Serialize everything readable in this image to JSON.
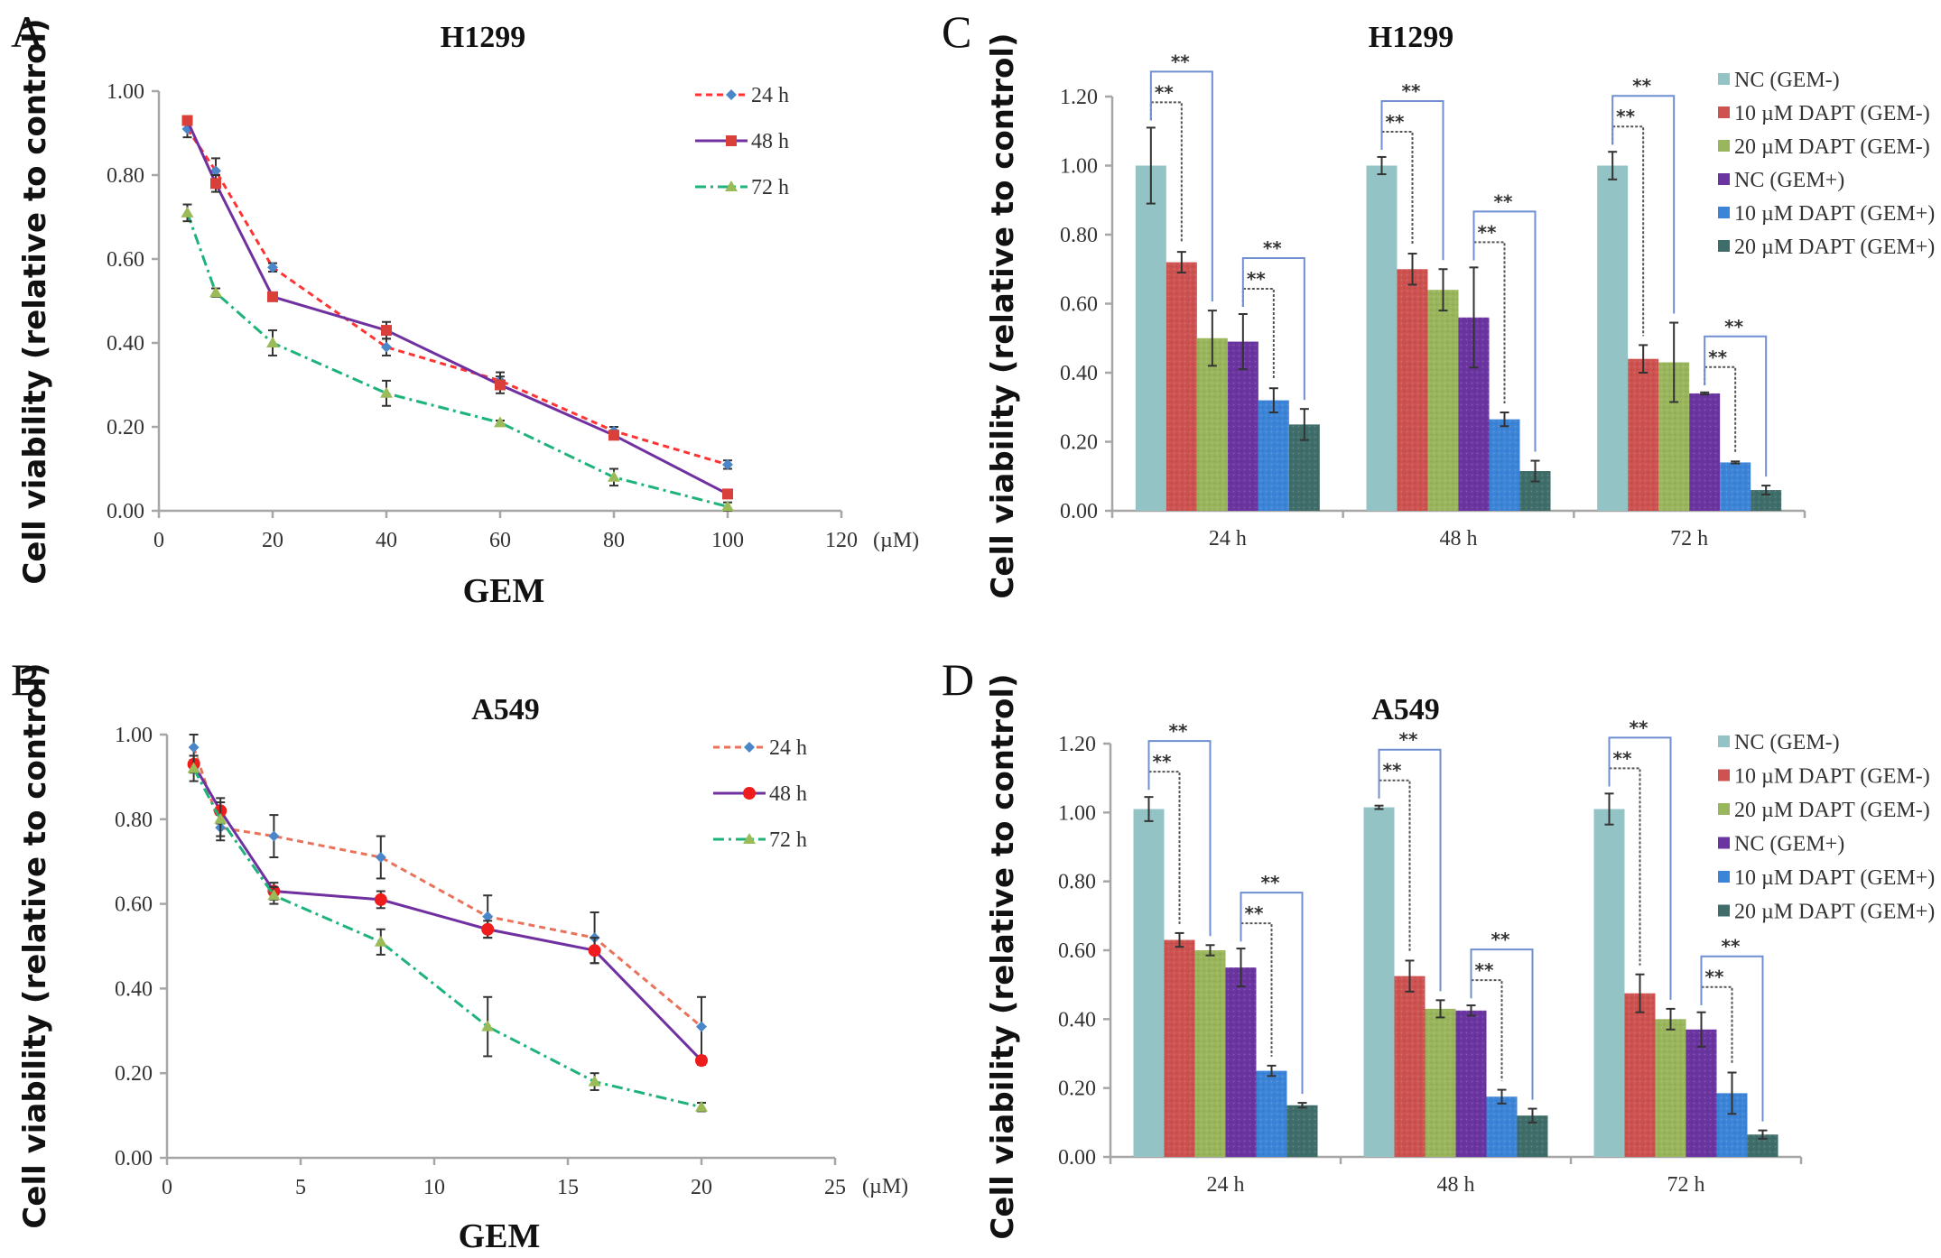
{
  "figure": {
    "panels": [
      "A",
      "B",
      "C",
      "D"
    ]
  },
  "chart_data": [
    {
      "panel": "A",
      "type": "line",
      "title": "H1299",
      "xlabel": "GEM",
      "x_unit": "(µM)",
      "ylabel": "Cell viability (relative to control)",
      "xlim": [
        0,
        120
      ],
      "ylim": [
        0,
        1.0
      ],
      "xticks": [
        0,
        20,
        40,
        60,
        80,
        100,
        120
      ],
      "xtick_labels": [
        "0",
        "20",
        "40",
        "60",
        "80",
        "100",
        "120"
      ],
      "yticks": [
        0,
        0.2,
        0.4,
        0.6,
        0.8,
        1.0
      ],
      "ytick_labels": [
        "0.00",
        "0.20",
        "0.40",
        "0.60",
        "0.80",
        "1.00"
      ],
      "legend_position": "top-right",
      "x": [
        5,
        10,
        20,
        40,
        60,
        80,
        100
      ],
      "series": [
        {
          "name": "24 h",
          "line_color": "#ff3333",
          "marker_color": "#4a86c8",
          "marker": "diamond",
          "dash": "dashed",
          "values": [
            0.91,
            0.81,
            0.58,
            0.39,
            0.31,
            0.19,
            0.11
          ],
          "errors": [
            0.02,
            0.03,
            0.01,
            0.02,
            0.02,
            0.01,
            0.01
          ]
        },
        {
          "name": "48 h",
          "line_color": "#7030a0",
          "marker_color": "#d9403a",
          "marker": "square",
          "dash": "solid",
          "values": [
            0.93,
            0.78,
            0.51,
            0.43,
            0.3,
            0.18,
            0.04
          ],
          "errors": [
            0.01,
            0.02,
            0.01,
            0.02,
            0.02,
            0.01,
            0.01
          ]
        },
        {
          "name": "72 h",
          "line_color": "#1db37a",
          "marker_color": "#9bbb59",
          "marker": "triangle",
          "dash": "dashdot",
          "values": [
            0.71,
            0.52,
            0.4,
            0.28,
            0.21,
            0.08,
            0.01
          ],
          "errors": [
            0.02,
            0.01,
            0.03,
            0.03,
            0.005,
            0.02,
            0.01
          ]
        }
      ]
    },
    {
      "panel": "B",
      "type": "line",
      "title": "A549",
      "xlabel": "GEM",
      "x_unit": "(µM)",
      "ylabel": "Cell viability (relative to control)",
      "xlim": [
        0,
        25
      ],
      "ylim": [
        0,
        1.0
      ],
      "xticks": [
        0,
        5,
        10,
        15,
        20,
        25
      ],
      "xtick_labels": [
        "0",
        "5",
        "10",
        "15",
        "20",
        "25"
      ],
      "yticks": [
        0,
        0.2,
        0.4,
        0.6,
        0.8,
        1.0
      ],
      "ytick_labels": [
        "0.00",
        "0.20",
        "0.40",
        "0.60",
        "0.80",
        "1.00"
      ],
      "legend_position": "top-right",
      "x": [
        1,
        2,
        4,
        8,
        12,
        16,
        20
      ],
      "series": [
        {
          "name": "24 h",
          "line_color": "#e8735a",
          "marker_color": "#4a86c8",
          "marker": "diamond",
          "dash": "dashed",
          "values": [
            0.97,
            0.78,
            0.76,
            0.71,
            0.57,
            0.52,
            0.31
          ],
          "errors": [
            0.03,
            0.03,
            0.05,
            0.05,
            0.05,
            0.06,
            0.07
          ]
        },
        {
          "name": "48 h",
          "line_color": "#7030a0",
          "marker_color": "#ee1c1c",
          "marker": "circle",
          "dash": "solid",
          "values": [
            0.93,
            0.82,
            0.63,
            0.61,
            0.54,
            0.49,
            0.23
          ],
          "errors": [
            0.02,
            0.03,
            0.02,
            0.02,
            0.02,
            0.03,
            0.01
          ]
        },
        {
          "name": "72 h",
          "line_color": "#1db37a",
          "marker_color": "#9bbb59",
          "marker": "triangle",
          "dash": "dashdot",
          "values": [
            0.92,
            0.8,
            0.62,
            0.51,
            0.31,
            0.18,
            0.12
          ],
          "errors": [
            0.03,
            0.04,
            0.02,
            0.03,
            0.07,
            0.02,
            0.01
          ]
        }
      ]
    },
    {
      "panel": "C",
      "type": "bar",
      "title": "H1299",
      "ylabel": "Cell viability (relative to control)",
      "ylim": [
        0,
        1.2
      ],
      "yticks": [
        0,
        0.2,
        0.4,
        0.6,
        0.8,
        1.0,
        1.2
      ],
      "ytick_labels": [
        "0.00",
        "0.20",
        "0.40",
        "0.60",
        "0.80",
        "1.00",
        "1.20"
      ],
      "categories": [
        "24 h",
        "48 h",
        "72 h"
      ],
      "legend_position": "top-right",
      "significance": "**",
      "series": [
        {
          "name": "NC (GEM-)",
          "color": "#93c3c4",
          "values": [
            1.0,
            1.0,
            1.0
          ],
          "errors": [
            0.11,
            0.025,
            0.04
          ]
        },
        {
          "name": "10 µM DAPT (GEM-)",
          "color": "#cd5250",
          "values": [
            0.72,
            0.7,
            0.44
          ],
          "errors": [
            0.03,
            0.045,
            0.04
          ]
        },
        {
          "name": "20 µM DAPT (GEM-)",
          "color": "#9ab65c",
          "values": [
            0.5,
            0.64,
            0.43
          ],
          "errors": [
            0.08,
            0.06,
            0.115
          ]
        },
        {
          "name": "NC (GEM+)",
          "color": "#6a35a0",
          "values": [
            0.49,
            0.56,
            0.34
          ],
          "errors": [
            0.08,
            0.145,
            0.003
          ]
        },
        {
          "name": "10 µM DAPT (GEM+)",
          "color": "#3c84d8",
          "values": [
            0.32,
            0.265,
            0.14
          ],
          "errors": [
            0.035,
            0.02,
            0.003
          ]
        },
        {
          "name": "20 µM DAPT (GEM+)",
          "color": "#3f6e6a",
          "values": [
            0.25,
            0.115,
            0.06
          ],
          "errors": [
            0.045,
            0.03,
            0.013
          ]
        }
      ]
    },
    {
      "panel": "D",
      "type": "bar",
      "title": "A549",
      "ylabel": "Cell viability (relative to control)",
      "ylim": [
        0,
        1.2
      ],
      "yticks": [
        0,
        0.2,
        0.4,
        0.6,
        0.8,
        1.0,
        1.2
      ],
      "ytick_labels": [
        "0.00",
        "0.20",
        "0.40",
        "0.60",
        "0.80",
        "1.00",
        "1.20"
      ],
      "categories": [
        "24 h",
        "48 h",
        "72 h"
      ],
      "legend_position": "top-right",
      "significance": "**",
      "series": [
        {
          "name": "NC (GEM-)",
          "color": "#93c3c4",
          "values": [
            1.01,
            1.015,
            1.01
          ],
          "errors": [
            0.035,
            0.005,
            0.045
          ]
        },
        {
          "name": "10 µM DAPT (GEM-)",
          "color": "#cd5250",
          "values": [
            0.63,
            0.525,
            0.475
          ],
          "errors": [
            0.02,
            0.045,
            0.055
          ]
        },
        {
          "name": "20 µM DAPT (GEM-)",
          "color": "#9ab65c",
          "values": [
            0.6,
            0.43,
            0.4
          ],
          "errors": [
            0.015,
            0.025,
            0.03
          ]
        },
        {
          "name": "NC (GEM+)",
          "color": "#6a35a0",
          "values": [
            0.55,
            0.425,
            0.37
          ],
          "errors": [
            0.055,
            0.015,
            0.05
          ]
        },
        {
          "name": "10 µM DAPT (GEM+)",
          "color": "#3c84d8",
          "values": [
            0.25,
            0.175,
            0.185
          ],
          "errors": [
            0.015,
            0.02,
            0.06
          ]
        },
        {
          "name": "20 µM DAPT (GEM+)",
          "color": "#3f6e6a",
          "values": [
            0.15,
            0.12,
            0.065
          ],
          "errors": [
            0.007,
            0.02,
            0.012
          ]
        }
      ]
    }
  ]
}
